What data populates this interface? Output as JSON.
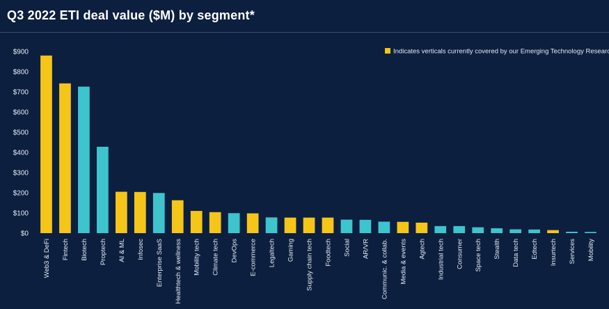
{
  "title": "Q3 2022 ETI deal value ($M) by segment*",
  "colors": {
    "background": "#0c1f3f",
    "covered": "#f5c518",
    "not_covered": "#3ec4cc"
  },
  "chart_data": {
    "type": "bar",
    "title": "Q3 2022 ETI deal value ($M) by segment*",
    "xlabel": "",
    "ylabel": "",
    "ylim": [
      0,
      900
    ],
    "yticks": [
      0,
      100,
      200,
      300,
      400,
      500,
      600,
      700,
      800,
      900
    ],
    "ytick_labels": [
      "$0",
      "$100",
      "$200",
      "$300",
      "$400",
      "$500",
      "$600",
      "$700",
      "$800",
      "$900"
    ],
    "grid": false,
    "legend": {
      "position": "top-right",
      "entries": [
        {
          "label": "Indicates verticals currently covered by our Emerging Technology Research team",
          "color": "#f5c518"
        }
      ]
    },
    "categories": [
      "Web3 & DeFi",
      "Fintech",
      "Biotech",
      "Proptech",
      "AI & ML",
      "Infosec",
      "Enterprise SaaS",
      "Healthtech & wellness",
      "Mobility tech",
      "Climate tech",
      "DevOps",
      "E-commerce",
      "Legaltech",
      "Gaming",
      "Supply chain tech",
      "Foodtech",
      "Social",
      "AR/VR",
      "Communic. & collab.",
      "Media & events",
      "Agtech",
      "Industrial tech",
      "Consumer",
      "Space tech",
      "Stealth",
      "Data tech",
      "Edtech",
      "Insurtech",
      "Services",
      "Mobility"
    ],
    "values": [
      880,
      742,
      726,
      428,
      205,
      204,
      199,
      163,
      110,
      104,
      99,
      98,
      78,
      77,
      77,
      77,
      67,
      66,
      57,
      56,
      52,
      35,
      35,
      29,
      24,
      19,
      18,
      15,
      7,
      6
    ],
    "covered": [
      true,
      true,
      false,
      false,
      true,
      true,
      false,
      true,
      true,
      true,
      false,
      true,
      false,
      true,
      true,
      true,
      false,
      false,
      false,
      true,
      true,
      false,
      false,
      false,
      false,
      false,
      false,
      true,
      false,
      false
    ]
  }
}
